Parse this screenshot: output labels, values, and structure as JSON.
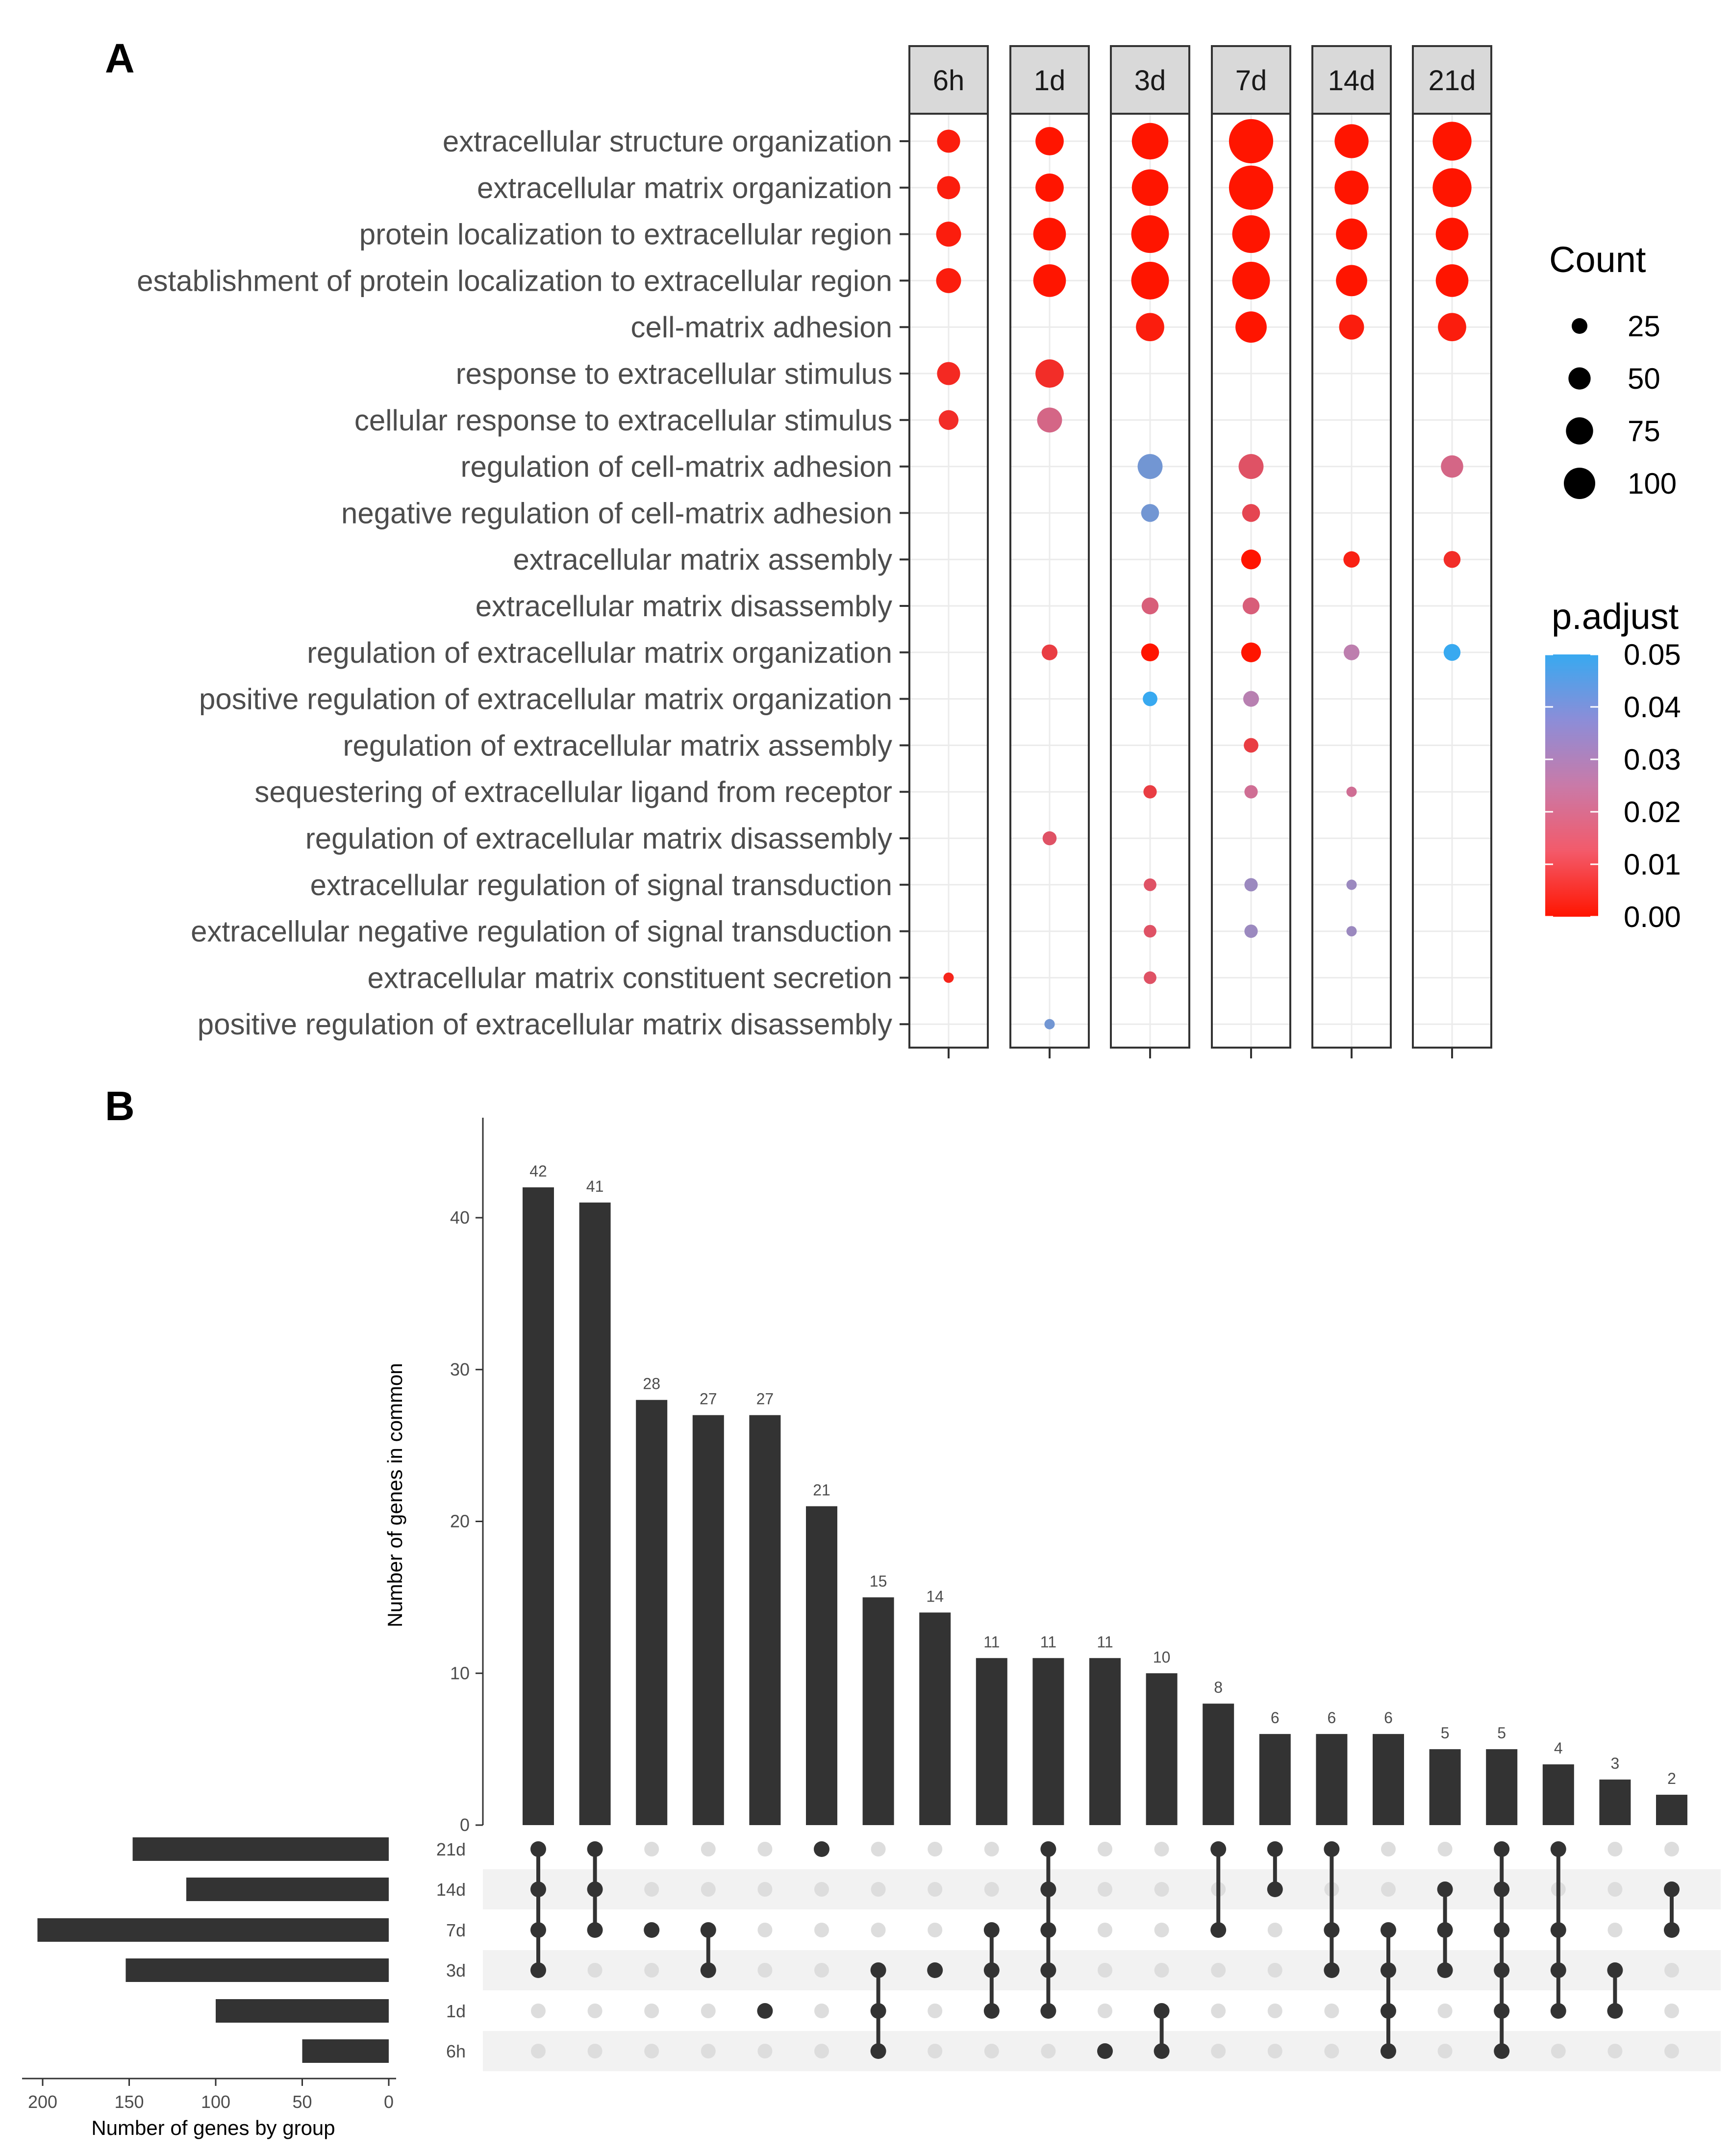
{
  "chart_data": [
    {
      "panel": "A",
      "type": "scatter",
      "subtype": "dotplot",
      "facets": [
        "6h",
        "1d",
        "3d",
        "7d",
        "14d",
        "21d"
      ],
      "terms": [
        "extracellular structure organization",
        "extracellular matrix organization",
        "protein localization to extracellular region",
        "establishment of protein localization to extracellular region",
        "cell-matrix adhesion",
        "response to extracellular stimulus",
        "cellular response to extracellular stimulus",
        "regulation of cell-matrix adhesion",
        "negative regulation of cell-matrix adhesion",
        "extracellular matrix assembly",
        "extracellular matrix disassembly",
        "regulation of extracellular matrix organization",
        "positive regulation of extracellular matrix organization",
        "regulation of extracellular matrix assembly",
        "sequestering of extracellular ligand from receptor",
        "regulation of extracellular matrix disassembly",
        "extracellular regulation of signal transduction",
        "extracellular negative regulation of signal transduction",
        "extracellular matrix constituent secretion",
        "positive regulation of extracellular matrix disassembly"
      ],
      "points": [
        {
          "term": 0,
          "facet": "6h",
          "count": 30,
          "p_adjust": 0.002
        },
        {
          "term": 0,
          "facet": "1d",
          "count": 45,
          "p_adjust": 0.0
        },
        {
          "term": 0,
          "facet": "3d",
          "count": 75,
          "p_adjust": 0.0
        },
        {
          "term": 0,
          "facet": "7d",
          "count": 110,
          "p_adjust": 0.0
        },
        {
          "term": 0,
          "facet": "14d",
          "count": 65,
          "p_adjust": 0.0
        },
        {
          "term": 0,
          "facet": "21d",
          "count": 85,
          "p_adjust": 0.0
        },
        {
          "term": 1,
          "facet": "6h",
          "count": 30,
          "p_adjust": 0.002
        },
        {
          "term": 1,
          "facet": "1d",
          "count": 45,
          "p_adjust": 0.0
        },
        {
          "term": 1,
          "facet": "3d",
          "count": 75,
          "p_adjust": 0.0
        },
        {
          "term": 1,
          "facet": "7d",
          "count": 110,
          "p_adjust": 0.0
        },
        {
          "term": 1,
          "facet": "14d",
          "count": 65,
          "p_adjust": 0.0
        },
        {
          "term": 1,
          "facet": "21d",
          "count": 85,
          "p_adjust": 0.0
        },
        {
          "term": 2,
          "facet": "6h",
          "count": 35,
          "p_adjust": 0.002
        },
        {
          "term": 2,
          "facet": "1d",
          "count": 60,
          "p_adjust": 0.0
        },
        {
          "term": 2,
          "facet": "3d",
          "count": 80,
          "p_adjust": 0.0
        },
        {
          "term": 2,
          "facet": "7d",
          "count": 80,
          "p_adjust": 0.0
        },
        {
          "term": 2,
          "facet": "14d",
          "count": 55,
          "p_adjust": 0.0
        },
        {
          "term": 2,
          "facet": "21d",
          "count": 60,
          "p_adjust": 0.0
        },
        {
          "term": 3,
          "facet": "6h",
          "count": 35,
          "p_adjust": 0.002
        },
        {
          "term": 3,
          "facet": "1d",
          "count": 60,
          "p_adjust": 0.0
        },
        {
          "term": 3,
          "facet": "3d",
          "count": 80,
          "p_adjust": 0.0
        },
        {
          "term": 3,
          "facet": "7d",
          "count": 80,
          "p_adjust": 0.0
        },
        {
          "term": 3,
          "facet": "14d",
          "count": 55,
          "p_adjust": 0.0
        },
        {
          "term": 3,
          "facet": "21d",
          "count": 60,
          "p_adjust": 0.0
        },
        {
          "term": 4,
          "facet": "3d",
          "count": 45,
          "p_adjust": 0.002
        },
        {
          "term": 4,
          "facet": "7d",
          "count": 55,
          "p_adjust": 0.0
        },
        {
          "term": 4,
          "facet": "14d",
          "count": 35,
          "p_adjust": 0.002
        },
        {
          "term": 4,
          "facet": "21d",
          "count": 45,
          "p_adjust": 0.002
        },
        {
          "term": 5,
          "facet": "6h",
          "count": 30,
          "p_adjust": 0.005
        },
        {
          "term": 5,
          "facet": "1d",
          "count": 45,
          "p_adjust": 0.006
        },
        {
          "term": 6,
          "facet": "6h",
          "count": 22,
          "p_adjust": 0.006
        },
        {
          "term": 6,
          "facet": "1d",
          "count": 35,
          "p_adjust": 0.02
        },
        {
          "term": 7,
          "facet": "3d",
          "count": 35,
          "p_adjust": 0.04
        },
        {
          "term": 7,
          "facet": "7d",
          "count": 35,
          "p_adjust": 0.015
        },
        {
          "term": 7,
          "facet": "21d",
          "count": 28,
          "p_adjust": 0.02
        },
        {
          "term": 8,
          "facet": "3d",
          "count": 18,
          "p_adjust": 0.04
        },
        {
          "term": 8,
          "facet": "7d",
          "count": 18,
          "p_adjust": 0.012
        },
        {
          "term": 9,
          "facet": "7d",
          "count": 22,
          "p_adjust": 0.0
        },
        {
          "term": 9,
          "facet": "14d",
          "count": 15,
          "p_adjust": 0.003
        },
        {
          "term": 9,
          "facet": "21d",
          "count": 16,
          "p_adjust": 0.006
        },
        {
          "term": 10,
          "facet": "3d",
          "count": 16,
          "p_adjust": 0.018
        },
        {
          "term": 10,
          "facet": "7d",
          "count": 16,
          "p_adjust": 0.018
        },
        {
          "term": 11,
          "facet": "1d",
          "count": 14,
          "p_adjust": 0.01
        },
        {
          "term": 11,
          "facet": "3d",
          "count": 18,
          "p_adjust": 0.0
        },
        {
          "term": 11,
          "facet": "7d",
          "count": 22,
          "p_adjust": 0.0
        },
        {
          "term": 11,
          "facet": "14d",
          "count": 14,
          "p_adjust": 0.027
        },
        {
          "term": 11,
          "facet": "21d",
          "count": 16,
          "p_adjust": 0.05
        },
        {
          "term": 12,
          "facet": "3d",
          "count": 12,
          "p_adjust": 0.05
        },
        {
          "term": 12,
          "facet": "7d",
          "count": 14,
          "p_adjust": 0.028
        },
        {
          "term": 13,
          "facet": "7d",
          "count": 12,
          "p_adjust": 0.01
        },
        {
          "term": 14,
          "facet": "3d",
          "count": 10,
          "p_adjust": 0.01
        },
        {
          "term": 14,
          "facet": "7d",
          "count": 10,
          "p_adjust": 0.022
        },
        {
          "term": 14,
          "facet": "14d",
          "count": 6,
          "p_adjust": 0.022
        },
        {
          "term": 15,
          "facet": "1d",
          "count": 11,
          "p_adjust": 0.015
        },
        {
          "term": 16,
          "facet": "3d",
          "count": 9,
          "p_adjust": 0.015
        },
        {
          "term": 16,
          "facet": "7d",
          "count": 10,
          "p_adjust": 0.033
        },
        {
          "term": 16,
          "facet": "14d",
          "count": 6,
          "p_adjust": 0.033
        },
        {
          "term": 17,
          "facet": "3d",
          "count": 9,
          "p_adjust": 0.015
        },
        {
          "term": 17,
          "facet": "7d",
          "count": 10,
          "p_adjust": 0.033
        },
        {
          "term": 17,
          "facet": "14d",
          "count": 6,
          "p_adjust": 0.033
        },
        {
          "term": 18,
          "facet": "6h",
          "count": 6,
          "p_adjust": 0.004
        },
        {
          "term": 18,
          "facet": "3d",
          "count": 9,
          "p_adjust": 0.015
        },
        {
          "term": 19,
          "facet": "1d",
          "count": 6,
          "p_adjust": 0.04
        }
      ],
      "size_legend": {
        "title": "Count",
        "values": [
          25,
          50,
          75,
          100
        ],
        "labels": [
          "25",
          "50",
          "75",
          "100"
        ]
      },
      "color_legend": {
        "title": "p.adjust",
        "min": 0,
        "max": 0.05,
        "labels": [
          "0.05",
          "0.04",
          "0.03",
          "0.02",
          "0.01",
          "0.00"
        ],
        "low_color": "#ff1500",
        "high_color": "#38a9f0"
      }
    },
    {
      "panel": "B",
      "type": "bar",
      "subtype": "upset",
      "sets": [
        "21d",
        "14d",
        "7d",
        "3d",
        "1d",
        "6h"
      ],
      "set_sizes": [
        148,
        117,
        203,
        152,
        100,
        50
      ],
      "set_axis": {
        "label": "Number of genes by group",
        "ticks": [
          200,
          150,
          100,
          50,
          0
        ],
        "tick_labels": [
          "200",
          "150",
          "100",
          "50",
          "0"
        ],
        "max": 210
      },
      "intersection_axis": {
        "label": "Number of genes in common",
        "ticks": [
          0,
          10,
          20,
          30,
          40
        ],
        "tick_labels": [
          "0",
          "10",
          "20",
          "30",
          "40"
        ],
        "max": 45
      },
      "intersections": [
        {
          "value": 42,
          "label": "42",
          "sets": [
            "21d",
            "14d",
            "7d",
            "3d"
          ]
        },
        {
          "value": 41,
          "label": "41",
          "sets": [
            "21d",
            "14d",
            "7d"
          ]
        },
        {
          "value": 28,
          "label": "28",
          "sets": [
            "7d"
          ]
        },
        {
          "value": 27,
          "label": "27",
          "sets": [
            "7d",
            "3d"
          ]
        },
        {
          "value": 27,
          "label": "27",
          "sets": [
            "1d"
          ]
        },
        {
          "value": 21,
          "label": "21",
          "sets": [
            "21d"
          ]
        },
        {
          "value": 15,
          "label": "15",
          "sets": [
            "3d",
            "1d",
            "6h"
          ]
        },
        {
          "value": 14,
          "label": "14",
          "sets": [
            "3d"
          ]
        },
        {
          "value": 11,
          "label": "11",
          "sets": [
            "7d",
            "3d",
            "1d"
          ]
        },
        {
          "value": 11,
          "label": "11",
          "sets": [
            "21d",
            "14d",
            "7d",
            "3d",
            "1d"
          ]
        },
        {
          "value": 11,
          "label": "11",
          "sets": [
            "6h"
          ]
        },
        {
          "value": 10,
          "label": "10",
          "sets": [
            "1d",
            "6h"
          ]
        },
        {
          "value": 8,
          "label": "8",
          "sets": [
            "21d",
            "7d"
          ]
        },
        {
          "value": 6,
          "label": "6",
          "sets": [
            "21d",
            "14d"
          ]
        },
        {
          "value": 6,
          "label": "6",
          "sets": [
            "21d",
            "7d",
            "3d"
          ]
        },
        {
          "value": 6,
          "label": "6",
          "sets": [
            "7d",
            "3d",
            "1d",
            "6h"
          ]
        },
        {
          "value": 5,
          "label": "5",
          "sets": [
            "14d",
            "7d",
            "3d"
          ]
        },
        {
          "value": 5,
          "label": "5",
          "sets": [
            "21d",
            "14d",
            "7d",
            "3d",
            "1d",
            "6h"
          ]
        },
        {
          "value": 4,
          "label": "4",
          "sets": [
            "21d",
            "7d",
            "3d",
            "1d"
          ]
        },
        {
          "value": 3,
          "label": "3",
          "sets": [
            "3d",
            "1d"
          ]
        },
        {
          "value": 2,
          "label": "2",
          "sets": [
            "14d",
            "7d"
          ]
        }
      ]
    }
  ],
  "panel_labels": {
    "a": "A",
    "b": "B"
  }
}
